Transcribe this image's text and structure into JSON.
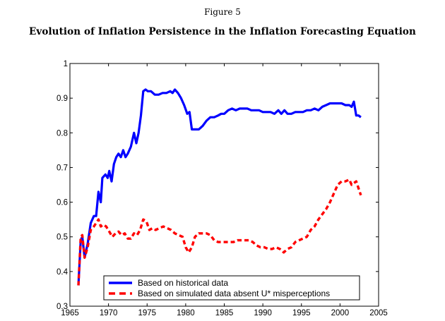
{
  "figure": {
    "label": "Figure 5",
    "title": "Evolution of Inflation Persistence in the Inflation Forecasting Equation"
  },
  "chart_data": {
    "type": "line",
    "title": "Evolution of Inflation Persistence in the Inflation Forecasting Equation",
    "xlabel": "",
    "ylabel": "",
    "xlim": [
      1965,
      2005
    ],
    "ylim": [
      0.3,
      1.0
    ],
    "xticks": [
      1965,
      1970,
      1975,
      1980,
      1985,
      1990,
      1995,
      2000,
      2005
    ],
    "xtick_labels": [
      "1965",
      "1970",
      "1975",
      "1980",
      "1985",
      "1990",
      "1995",
      "2000",
      "2005"
    ],
    "yticks": [
      0.3,
      0.4,
      0.5,
      0.6,
      0.7,
      0.8,
      0.9,
      1.0
    ],
    "ytick_labels": [
      "0.3",
      "0.4",
      "0.5",
      "0.6",
      "0.7",
      "0.8",
      "0.9",
      "1"
    ],
    "grid": false,
    "legend_position": "bottom-center",
    "series": [
      {
        "name": "Based on historical data",
        "color": "#0000ff",
        "style": "solid",
        "x": [
          1966.1,
          1966.4,
          1966.6,
          1966.9,
          1967.3,
          1967.7,
          1968.1,
          1968.4,
          1968.7,
          1969.0,
          1969.2,
          1969.6,
          1969.9,
          1970.1,
          1970.4,
          1970.7,
          1971.0,
          1971.3,
          1971.6,
          1971.9,
          1972.2,
          1972.5,
          1972.9,
          1973.3,
          1973.6,
          1973.9,
          1974.2,
          1974.5,
          1974.8,
          1975.1,
          1975.5,
          1976.0,
          1976.5,
          1977.0,
          1977.5,
          1978.0,
          1978.3,
          1978.6,
          1979.0,
          1979.4,
          1979.8,
          1980.2,
          1980.5,
          1980.8,
          1981.2,
          1981.7,
          1982.2,
          1982.7,
          1983.2,
          1983.7,
          1984.2,
          1984.6,
          1985.0,
          1985.5,
          1986.0,
          1986.5,
          1987.0,
          1987.5,
          1988.0,
          1988.5,
          1989.0,
          1989.5,
          1990.0,
          1990.5,
          1991.0,
          1991.5,
          1992.0,
          1992.4,
          1992.8,
          1993.2,
          1993.7,
          1994.2,
          1994.7,
          1995.2,
          1995.7,
          1996.2,
          1996.7,
          1997.2,
          1997.7,
          1998.2,
          1998.7,
          1999.2,
          1999.7,
          2000.2,
          2000.7,
          2001.2,
          2001.5,
          2001.8,
          2002.1,
          2002.4,
          2002.7
        ],
        "y": [
          0.36,
          0.49,
          0.5,
          0.44,
          0.48,
          0.54,
          0.56,
          0.56,
          0.63,
          0.6,
          0.67,
          0.68,
          0.67,
          0.69,
          0.66,
          0.71,
          0.73,
          0.74,
          0.73,
          0.75,
          0.73,
          0.74,
          0.76,
          0.8,
          0.77,
          0.8,
          0.85,
          0.92,
          0.925,
          0.92,
          0.92,
          0.91,
          0.91,
          0.915,
          0.915,
          0.92,
          0.915,
          0.925,
          0.915,
          0.9,
          0.88,
          0.855,
          0.86,
          0.81,
          0.81,
          0.81,
          0.82,
          0.835,
          0.845,
          0.845,
          0.85,
          0.855,
          0.855,
          0.865,
          0.87,
          0.865,
          0.87,
          0.87,
          0.87,
          0.865,
          0.865,
          0.865,
          0.86,
          0.86,
          0.86,
          0.855,
          0.865,
          0.855,
          0.865,
          0.855,
          0.855,
          0.86,
          0.86,
          0.86,
          0.865,
          0.865,
          0.87,
          0.865,
          0.875,
          0.88,
          0.885,
          0.885,
          0.885,
          0.885,
          0.88,
          0.88,
          0.875,
          0.89,
          0.85,
          0.85,
          0.845
        ]
      },
      {
        "name": "Based on simulated data absent U* misperceptions",
        "color": "#ff0000",
        "style": "dashed",
        "x": [
          1966.1,
          1966.4,
          1966.6,
          1966.9,
          1967.3,
          1967.7,
          1968.1,
          1968.4,
          1968.7,
          1969.0,
          1969.3,
          1969.7,
          1970.1,
          1970.5,
          1970.9,
          1971.3,
          1971.7,
          1972.1,
          1972.5,
          1972.9,
          1973.3,
          1973.7,
          1974.1,
          1974.5,
          1974.9,
          1975.3,
          1975.7,
          1976.1,
          1976.6,
          1977.1,
          1977.6,
          1978.1,
          1978.6,
          1979.1,
          1979.6,
          1980.0,
          1980.4,
          1980.8,
          1981.2,
          1981.7,
          1982.2,
          1982.7,
          1983.2,
          1983.7,
          1984.2,
          1984.7,
          1985.2,
          1985.7,
          1986.2,
          1986.7,
          1987.2,
          1987.7,
          1988.2,
          1988.7,
          1989.2,
          1989.7,
          1990.2,
          1990.7,
          1991.2,
          1991.7,
          1992.2,
          1992.7,
          1993.2,
          1993.7,
          1994.2,
          1994.7,
          1995.2,
          1995.7,
          1996.2,
          1996.7,
          1997.2,
          1997.7,
          1998.2,
          1998.7,
          1999.2,
          1999.7,
          2000.2,
          2000.7,
          2001.2,
          2001.5,
          2001.8,
          2002.1,
          2002.4,
          2002.7
        ],
        "y": [
          0.36,
          0.5,
          0.505,
          0.44,
          0.47,
          0.52,
          0.53,
          0.54,
          0.55,
          0.53,
          0.535,
          0.53,
          0.515,
          0.5,
          0.51,
          0.515,
          0.505,
          0.51,
          0.495,
          0.495,
          0.51,
          0.505,
          0.52,
          0.55,
          0.545,
          0.52,
          0.525,
          0.52,
          0.525,
          0.53,
          0.525,
          0.52,
          0.51,
          0.505,
          0.5,
          0.47,
          0.455,
          0.47,
          0.5,
          0.51,
          0.51,
          0.51,
          0.505,
          0.49,
          0.485,
          0.485,
          0.485,
          0.485,
          0.485,
          0.49,
          0.49,
          0.49,
          0.49,
          0.485,
          0.475,
          0.47,
          0.47,
          0.465,
          0.465,
          0.47,
          0.465,
          0.455,
          0.465,
          0.47,
          0.485,
          0.49,
          0.495,
          0.5,
          0.52,
          0.53,
          0.55,
          0.565,
          0.58,
          0.6,
          0.625,
          0.65,
          0.66,
          0.66,
          0.665,
          0.65,
          0.655,
          0.66,
          0.64,
          0.62
        ]
      }
    ],
    "legend": [
      {
        "label": "Based on historical data",
        "color": "#0000ff",
        "style": "solid"
      },
      {
        "label": "Based on simulated data absent U* misperceptions",
        "color": "#ff0000",
        "style": "dashed"
      }
    ]
  }
}
